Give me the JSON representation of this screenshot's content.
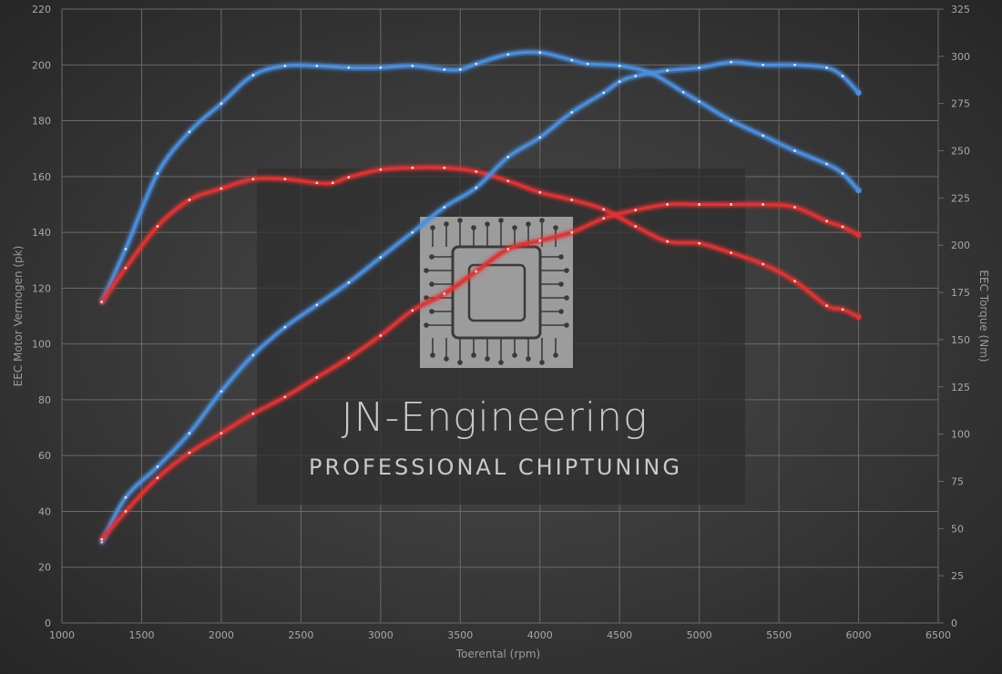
{
  "chart_data": {
    "type": "line",
    "xlabel": "Toerental (rpm)",
    "ylabel": "EEC Motor Vermogen (pk)",
    "y2label": "EEC Torque (Nm)",
    "xlim": [
      1000,
      6500
    ],
    "ylim": [
      0,
      220
    ],
    "y2lim": [
      0,
      325
    ],
    "x_ticks": [
      1000,
      1500,
      2000,
      2500,
      3000,
      3500,
      4000,
      4500,
      5000,
      5500,
      6000,
      6500
    ],
    "y_ticks": [
      0,
      20,
      40,
      60,
      80,
      100,
      120,
      140,
      160,
      180,
      200,
      220
    ],
    "y2_ticks": [
      0,
      25,
      50,
      75,
      100,
      125,
      150,
      175,
      200,
      225,
      250,
      275,
      300,
      325
    ],
    "grid": true,
    "legend": "none",
    "series": [
      {
        "axis": "y2",
        "color": "#4a8fe0",
        "x": [
          1250,
          1400,
          1600,
          1800,
          2000,
          2200,
          2400,
          2600,
          2800,
          3000,
          3200,
          3400,
          3500,
          3600,
          3800,
          4000,
          4200,
          4300,
          4500,
          4700,
          4900,
          5000,
          5200,
          5400,
          5600,
          5800,
          5900,
          6000
        ],
        "values": [
          170,
          198,
          238,
          260,
          275,
          290,
          295,
          295,
          294,
          294,
          295,
          293,
          293,
          296,
          301,
          302,
          298,
          296,
          295,
          291,
          281,
          276,
          266,
          258,
          250,
          243,
          238,
          229
        ]
      },
      {
        "axis": "y2",
        "color": "#e23030",
        "x": [
          1250,
          1400,
          1600,
          1800,
          2000,
          2200,
          2400,
          2600,
          2700,
          2800,
          3000,
          3200,
          3400,
          3600,
          3800,
          4000,
          4200,
          4400,
          4600,
          4800,
          5000,
          5200,
          5400,
          5600,
          5800,
          5900,
          6000
        ],
        "values": [
          170,
          188,
          210,
          224,
          230,
          235,
          235,
          233,
          233,
          236,
          240,
          241,
          241,
          239,
          234,
          228,
          224,
          219,
          210,
          202,
          201,
          196,
          190,
          181,
          168,
          166,
          162
        ]
      },
      {
        "axis": "y",
        "color": "#4a8fe0",
        "x": [
          1250,
          1400,
          1600,
          1800,
          2000,
          2200,
          2400,
          2600,
          2800,
          3000,
          3200,
          3400,
          3600,
          3800,
          4000,
          4200,
          4400,
          4500,
          4600,
          4800,
          5000,
          5200,
          5400,
          5600,
          5800,
          5900,
          6000
        ],
        "values": [
          29,
          45,
          56,
          68,
          83,
          96,
          106,
          114,
          122,
          131,
          140,
          149,
          156,
          167,
          174,
          183,
          190,
          194,
          196,
          198,
          199,
          201,
          200,
          200,
          199,
          196,
          190
        ]
      },
      {
        "axis": "y",
        "color": "#e23030",
        "x": [
          1250,
          1400,
          1600,
          1800,
          2000,
          2200,
          2400,
          2600,
          2800,
          3000,
          3200,
          3400,
          3600,
          3800,
          4000,
          4200,
          4400,
          4600,
          4800,
          5000,
          5200,
          5400,
          5600,
          5800,
          5900,
          6000
        ],
        "values": [
          30,
          40,
          52,
          61,
          68,
          75,
          81,
          88,
          95,
          103,
          112,
          118,
          126,
          134,
          137,
          140,
          145,
          148,
          150,
          150,
          150,
          150,
          149,
          144,
          142,
          139
        ]
      }
    ]
  },
  "watermark": {
    "title": "JN-Engineering",
    "subtitle": "PROFESSIONAL CHIPTUNING",
    "logo_icon": "chip-icon"
  }
}
